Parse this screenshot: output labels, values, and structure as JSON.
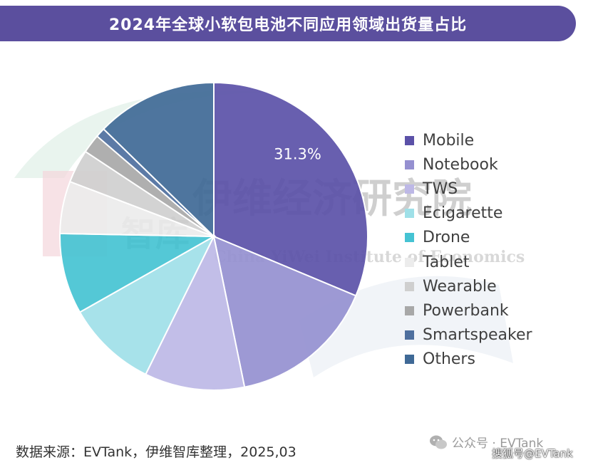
{
  "title": "2024年全球小软包电池不同应用领域出货量占比",
  "source": "数据来源：EVTank，伊维智库整理，2025,03",
  "watermark": {
    "cn": "伊维经济研究院",
    "en": "China YiWei Institute of Economics",
    "logo_text": "智库"
  },
  "wechat": {
    "text": "公众号 · EVTank"
  },
  "sohu": {
    "text": "搜狐号@EVTank"
  },
  "chart_data": {
    "type": "pie",
    "title": "2024年全球小软包电池不同应用领域出货量占比",
    "legend_position": "right",
    "slices": [
      {
        "name": "Mobile",
        "value": 31.3,
        "color": "#5b51a8",
        "label": "31.3%"
      },
      {
        "name": "Notebook",
        "value": 15.5,
        "color": "#9590d0",
        "label": ""
      },
      {
        "name": "TWS",
        "value": 10.5,
        "color": "#bdb8e6",
        "label": ""
      },
      {
        "name": "Ecigarette",
        "value": 9.5,
        "color": "#9fe0e8",
        "label": ""
      },
      {
        "name": "Drone",
        "value": 8.5,
        "color": "#45c3d3",
        "label": ""
      },
      {
        "name": "Tablet",
        "value": 5.5,
        "color": "#ececec",
        "label": ""
      },
      {
        "name": "Wearable",
        "value": 3.5,
        "color": "#cfcfcf",
        "label": ""
      },
      {
        "name": "Powerbank",
        "value": 2.0,
        "color": "#a8a8a8",
        "label": ""
      },
      {
        "name": "Smartspeaker",
        "value": 1.0,
        "color": "#4e6f9e",
        "label": ""
      },
      {
        "name": "Others",
        "value": 12.7,
        "color": "#3f6996",
        "label": ""
      }
    ]
  }
}
